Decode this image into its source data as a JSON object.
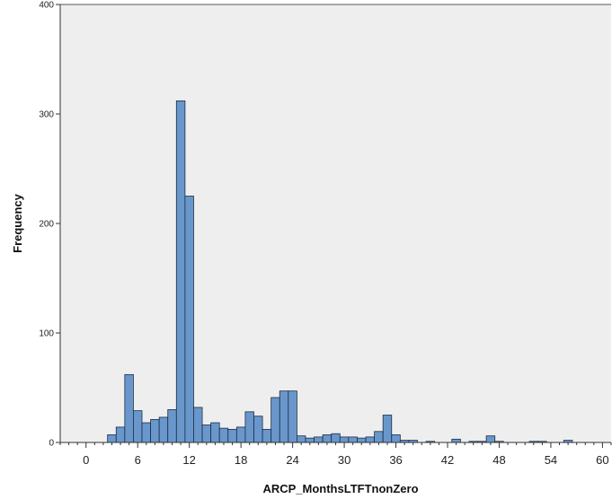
{
  "chart_data": {
    "type": "bar",
    "title": "",
    "xlabel": "ARCP_MonthsLTFTnonZero",
    "ylabel": "Frequency",
    "xlim": [
      -3,
      61
    ],
    "ylim": [
      0,
      400
    ],
    "x_ticks": [
      0,
      6,
      12,
      18,
      24,
      30,
      36,
      42,
      48,
      54,
      60
    ],
    "y_ticks": [
      0,
      100,
      200,
      300,
      400
    ],
    "bin_width": 1,
    "grid": false,
    "legend": "none",
    "colors": {
      "bar": "#6a97cb",
      "bar_edge": "#1a2d45",
      "plot_bg": "#eeeeee",
      "axis": "#333333"
    },
    "x": [
      3,
      4,
      5,
      6,
      7,
      8,
      9,
      10,
      11,
      12,
      13,
      14,
      15,
      16,
      17,
      18,
      19,
      20,
      21,
      22,
      23,
      24,
      25,
      26,
      27,
      28,
      29,
      30,
      31,
      32,
      33,
      34,
      35,
      36,
      37,
      38,
      39,
      40,
      41,
      42,
      43,
      44,
      45,
      46,
      47,
      48,
      49,
      50,
      51,
      52,
      53,
      54,
      55,
      56,
      57,
      58,
      59,
      60
    ],
    "values": [
      7,
      14,
      62,
      29,
      18,
      21,
      23,
      30,
      312,
      225,
      32,
      16,
      18,
      13,
      12,
      14,
      28,
      24,
      12,
      41,
      47,
      47,
      6,
      4,
      5,
      7,
      8,
      5,
      5,
      4,
      5,
      10,
      25,
      7,
      2,
      2,
      0,
      1,
      0,
      0,
      3,
      0,
      1,
      1,
      6,
      1,
      0,
      0,
      0,
      1,
      1,
      0,
      0,
      2,
      0,
      0,
      0,
      0
    ]
  }
}
